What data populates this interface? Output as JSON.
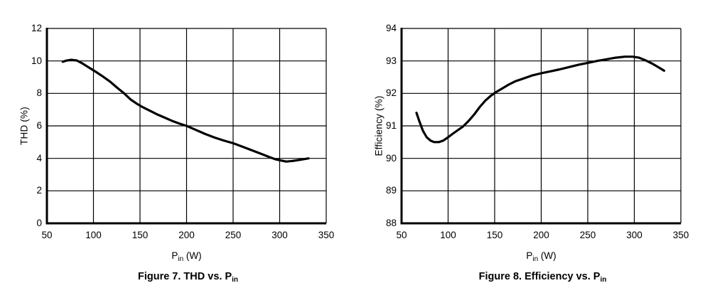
{
  "colors": {
    "background": "#ffffff",
    "line": "#000000",
    "grid": "#000000",
    "axis": "#000000",
    "text": "#000000"
  },
  "chart_data": [
    {
      "id": "thd-vs-pin",
      "type": "line",
      "title": "Figure 7. THD vs. Pin",
      "caption": {
        "prefix": "Figure 7. THD vs. ",
        "sym_base": "P",
        "sym_sub": "in"
      },
      "xlabel": {
        "sym_base": "P",
        "sym_sub": "in",
        "suffix": " (W)"
      },
      "ylabel": "THD (%)",
      "xlim": [
        50,
        350
      ],
      "ylim": [
        0,
        12
      ],
      "x_ticks": [
        50,
        100,
        150,
        200,
        250,
        300,
        350
      ],
      "y_ticks": [
        0,
        2,
        4,
        6,
        8,
        10,
        12
      ],
      "grid": true,
      "legend": "none",
      "series": [
        {
          "name": "THD",
          "x": [
            67,
            71,
            76,
            82,
            88,
            95,
            102,
            110,
            118,
            126,
            133,
            140,
            147,
            153,
            160,
            168,
            176,
            184,
            192,
            200,
            210,
            220,
            230,
            240,
            250,
            260,
            270,
            280,
            288,
            295,
            301,
            307,
            314,
            321,
            331
          ],
          "y": [
            9.95,
            10.02,
            10.07,
            10.03,
            9.85,
            9.6,
            9.35,
            9.05,
            8.72,
            8.32,
            8.0,
            7.62,
            7.35,
            7.15,
            6.95,
            6.72,
            6.52,
            6.32,
            6.15,
            6.0,
            5.75,
            5.5,
            5.28,
            5.1,
            4.93,
            4.72,
            4.5,
            4.28,
            4.1,
            3.95,
            3.87,
            3.8,
            3.84,
            3.9,
            4.0
          ]
        }
      ]
    },
    {
      "id": "efficiency-vs-pin",
      "type": "line",
      "title": "Figure 8. Efficiency vs. Pin",
      "caption": {
        "prefix": "Figure 8. Efficiency vs. ",
        "sym_base": "P",
        "sym_sub": "in"
      },
      "xlabel": {
        "sym_base": "P",
        "sym_sub": "in",
        "suffix": " (W)"
      },
      "ylabel": "Efficiency (%)",
      "xlim": [
        50,
        350
      ],
      "ylim": [
        88,
        94
      ],
      "x_ticks": [
        50,
        100,
        150,
        200,
        250,
        300,
        350
      ],
      "y_ticks": [
        88,
        89,
        90,
        91,
        92,
        93,
        94
      ],
      "grid": true,
      "legend": "none",
      "series": [
        {
          "name": "Efficiency",
          "x": [
            66,
            69,
            73,
            77,
            81,
            85,
            90,
            95,
            100,
            105,
            111,
            116,
            122,
            128,
            134,
            140,
            146,
            152,
            158,
            165,
            172,
            180,
            190,
            200,
            210,
            220,
            230,
            240,
            250,
            260,
            270,
            280,
            290,
            298,
            305,
            312,
            319,
            325,
            332
          ],
          "y": [
            91.4,
            91.15,
            90.85,
            90.65,
            90.55,
            90.5,
            90.5,
            90.55,
            90.65,
            90.76,
            90.88,
            90.98,
            91.15,
            91.35,
            91.58,
            91.78,
            91.93,
            92.05,
            92.15,
            92.27,
            92.37,
            92.45,
            92.55,
            92.62,
            92.68,
            92.74,
            92.81,
            92.88,
            92.94,
            93.0,
            93.05,
            93.1,
            93.13,
            93.13,
            93.1,
            93.02,
            92.92,
            92.82,
            92.7
          ]
        }
      ]
    }
  ]
}
